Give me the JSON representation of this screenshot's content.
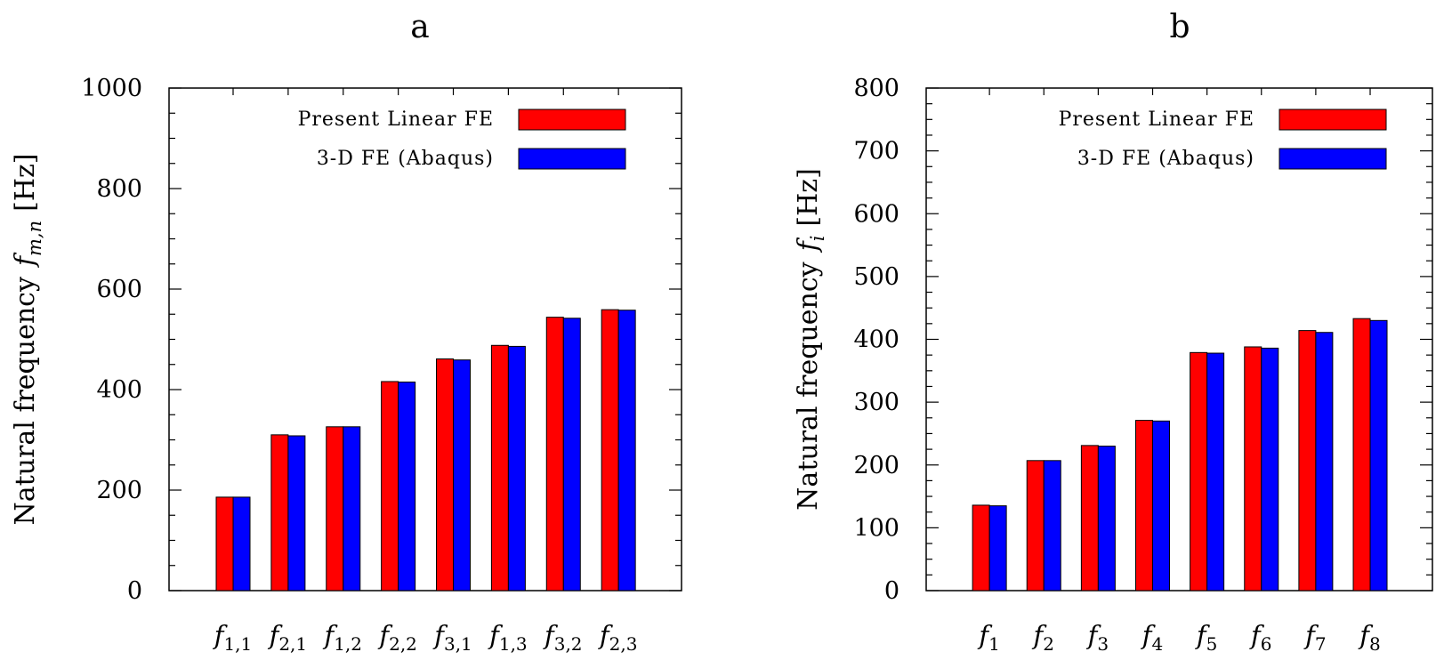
{
  "chart_data": [
    {
      "type": "bar",
      "title": "a",
      "ylabel": "Natural frequency",
      "ylabel_symbol": "f",
      "ylabel_subscript": "m,n",
      "ylabel_unit": "[Hz]",
      "ylim": [
        0,
        1000
      ],
      "yticks": [
        0,
        200,
        400,
        600,
        800,
        1000
      ],
      "categories": [
        {
          "sym": "f",
          "sub": "1,1"
        },
        {
          "sym": "f",
          "sub": "2,1"
        },
        {
          "sym": "f",
          "sub": "1,2"
        },
        {
          "sym": "f",
          "sub": "2,2"
        },
        {
          "sym": "f",
          "sub": "3,1"
        },
        {
          "sym": "f",
          "sub": "1,3"
        },
        {
          "sym": "f",
          "sub": "3,2"
        },
        {
          "sym": "f",
          "sub": "2,3"
        }
      ],
      "series": [
        {
          "name": "Present Linear FE",
          "color": "#ff0000",
          "values": [
            186,
            310,
            326,
            416,
            461,
            488,
            544,
            559
          ]
        },
        {
          "name": "3-D FE (Abaqus)",
          "color": "#0000ff",
          "values": [
            186,
            308,
            326,
            415,
            459,
            486,
            542,
            558
          ]
        }
      ]
    },
    {
      "type": "bar",
      "title": "b",
      "ylabel": "Natural frequency",
      "ylabel_symbol": "f",
      "ylabel_subscript": "i",
      "ylabel_unit": "[Hz]",
      "ylim": [
        0,
        800
      ],
      "yticks": [
        0,
        100,
        200,
        300,
        400,
        500,
        600,
        700,
        800
      ],
      "categories": [
        {
          "sym": "f",
          "sub": "1"
        },
        {
          "sym": "f",
          "sub": "2"
        },
        {
          "sym": "f",
          "sub": "3"
        },
        {
          "sym": "f",
          "sub": "4"
        },
        {
          "sym": "f",
          "sub": "5"
        },
        {
          "sym": "f",
          "sub": "6"
        },
        {
          "sym": "f",
          "sub": "7"
        },
        {
          "sym": "f",
          "sub": "8"
        }
      ],
      "series": [
        {
          "name": "Present Linear FE",
          "color": "#ff0000",
          "values": [
            136,
            207,
            231,
            271,
            379,
            388,
            414,
            433
          ]
        },
        {
          "name": "3-D FE (Abaqus)",
          "color": "#0000ff",
          "values": [
            135,
            207,
            230,
            270,
            378,
            386,
            411,
            430
          ]
        }
      ]
    }
  ]
}
